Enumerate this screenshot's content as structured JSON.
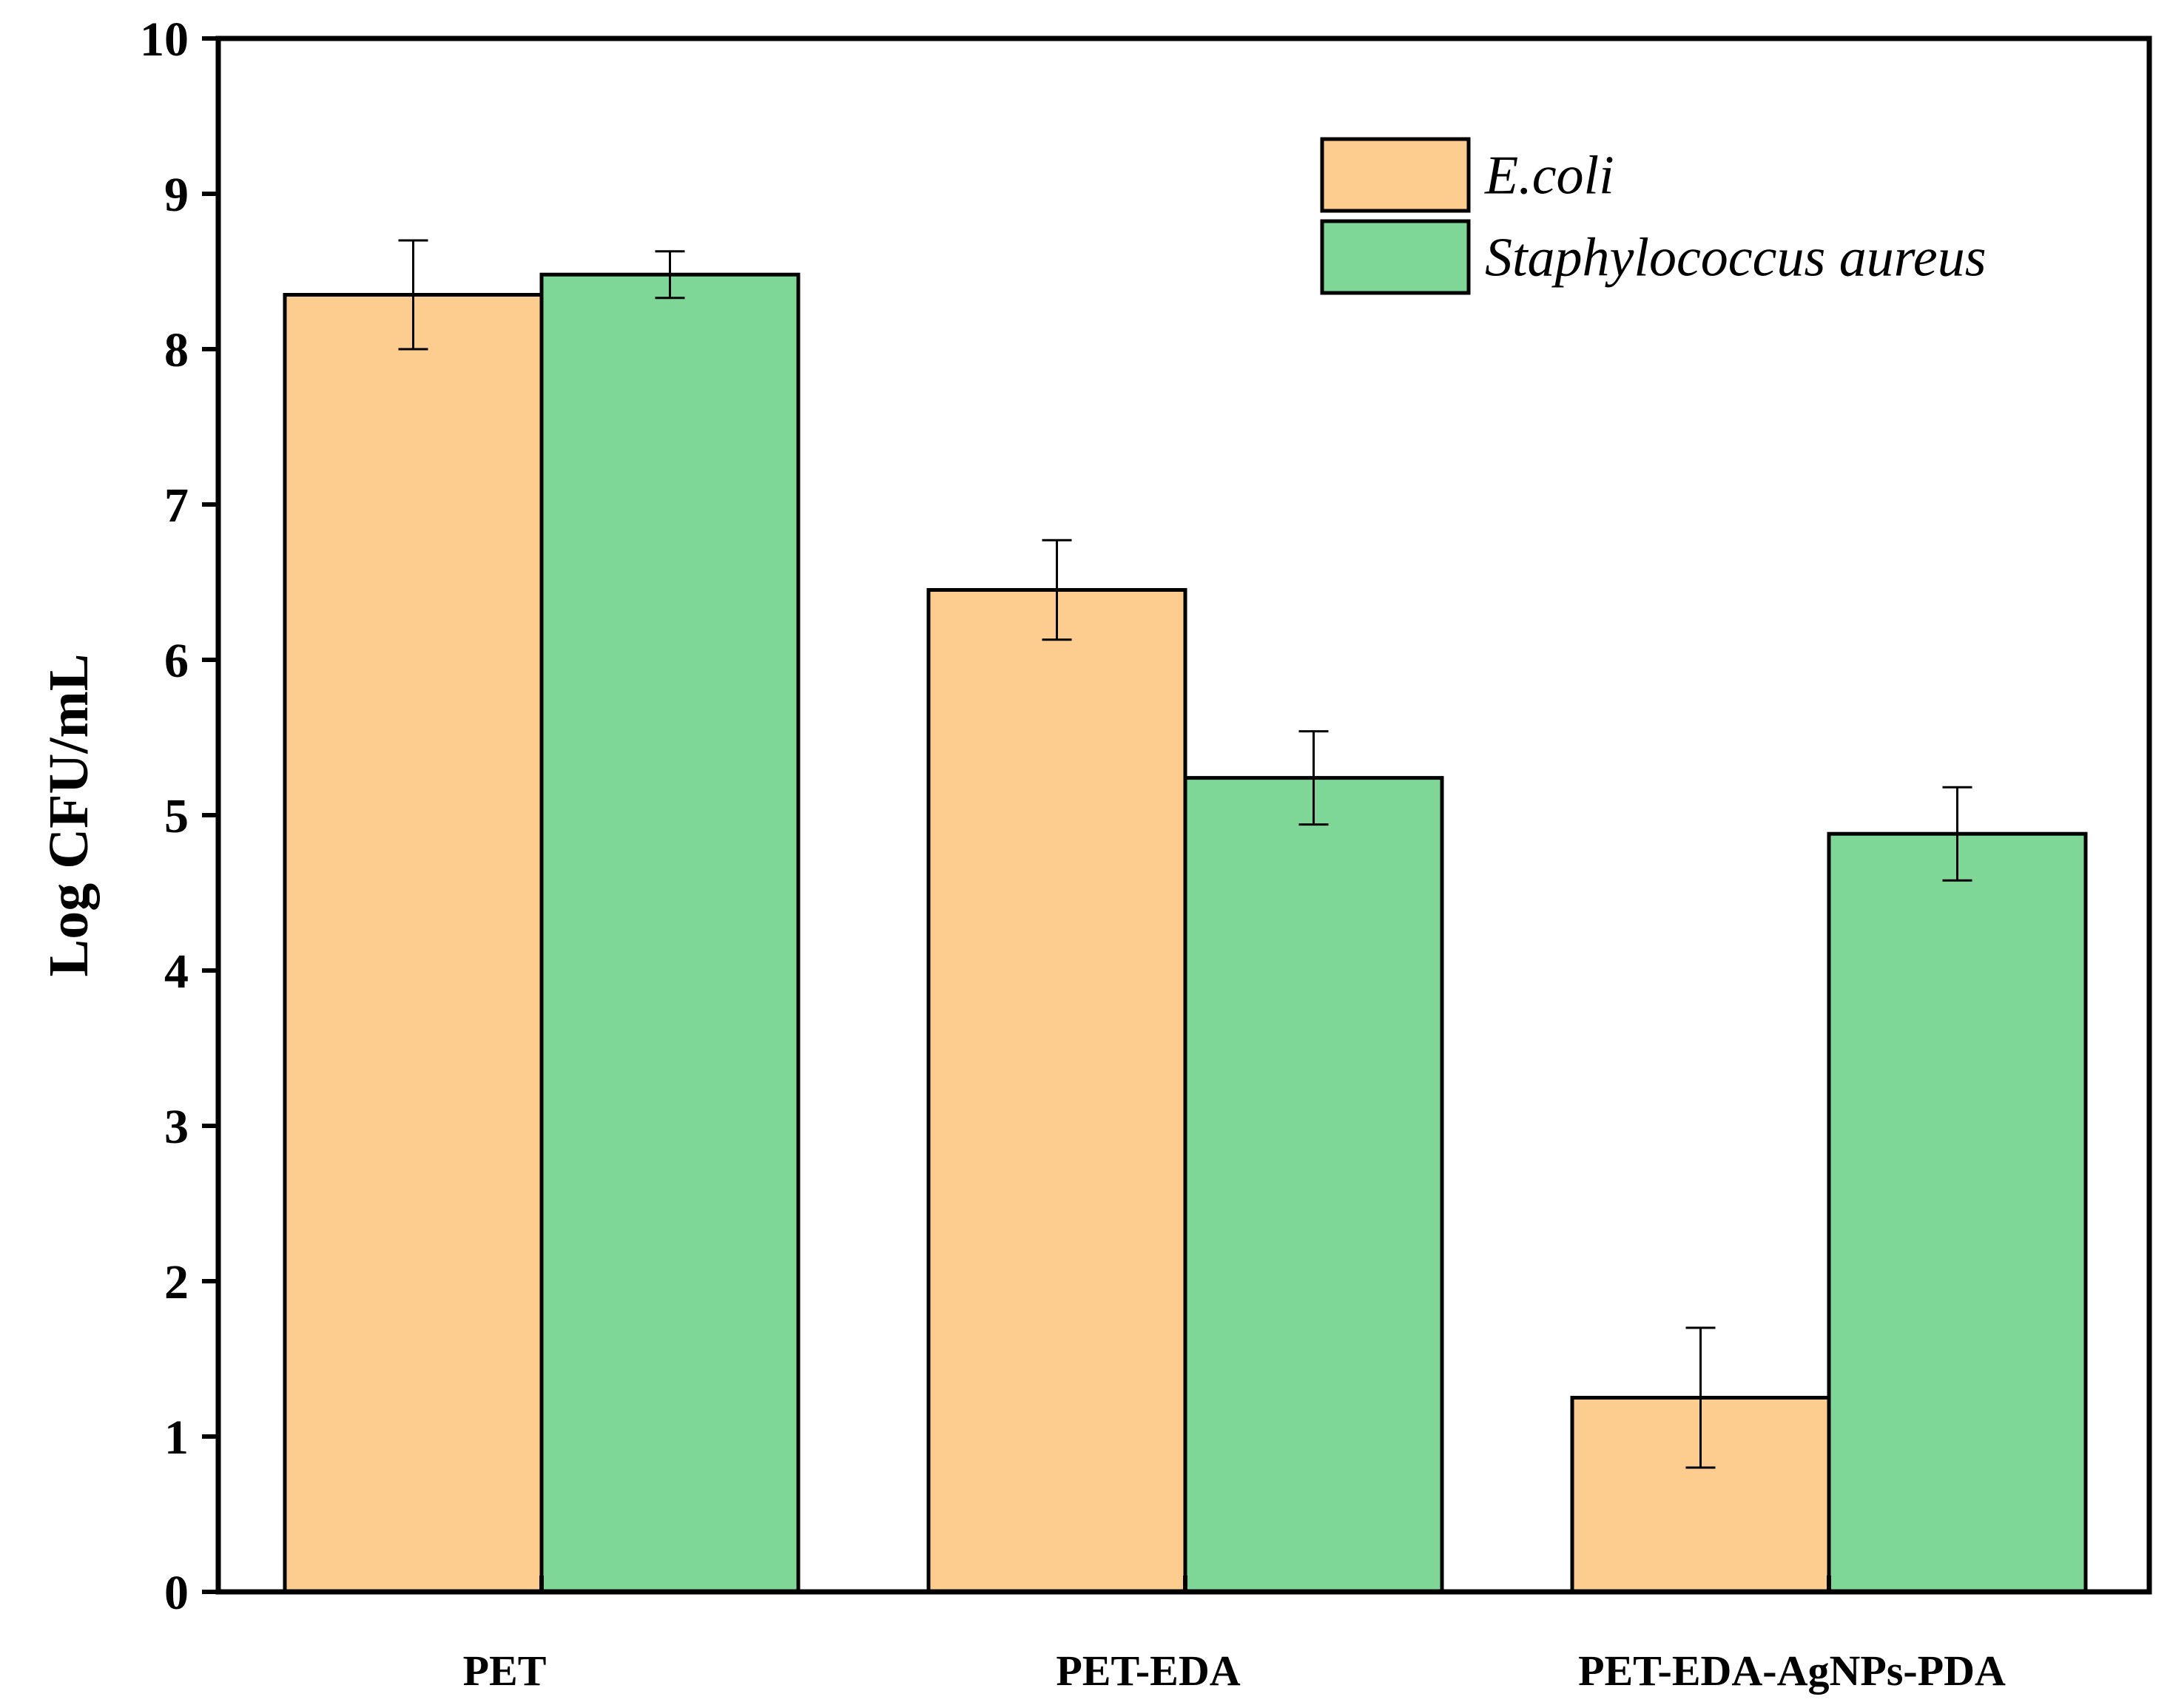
{
  "chart_data": {
    "type": "bar",
    "title": "",
    "xlabel": "",
    "ylabel": "Log CFU/mL",
    "ylim": [
      0,
      10
    ],
    "yticks": [
      0,
      1,
      2,
      3,
      4,
      5,
      6,
      7,
      8,
      9,
      10
    ],
    "yticks_text": [
      "0",
      "1",
      "2",
      "3",
      "4",
      "5",
      "6",
      "7",
      "8",
      "9",
      "10"
    ],
    "grid": false,
    "legend_position": "top-right",
    "categories": [
      "PET",
      "PET-EDA",
      "PET-EDA-AgNPs-PDA"
    ],
    "series": [
      {
        "name": "E.coli",
        "color": "#FDCD90",
        "values": [
          8.35,
          6.45,
          1.25
        ],
        "errors": [
          0.35,
          0.32,
          0.45
        ]
      },
      {
        "name": "Staphylococcus aureus",
        "color": "#7ED796",
        "values": [
          8.48,
          5.24,
          4.88
        ],
        "errors": [
          0.15,
          0.3,
          0.3
        ]
      }
    ]
  }
}
